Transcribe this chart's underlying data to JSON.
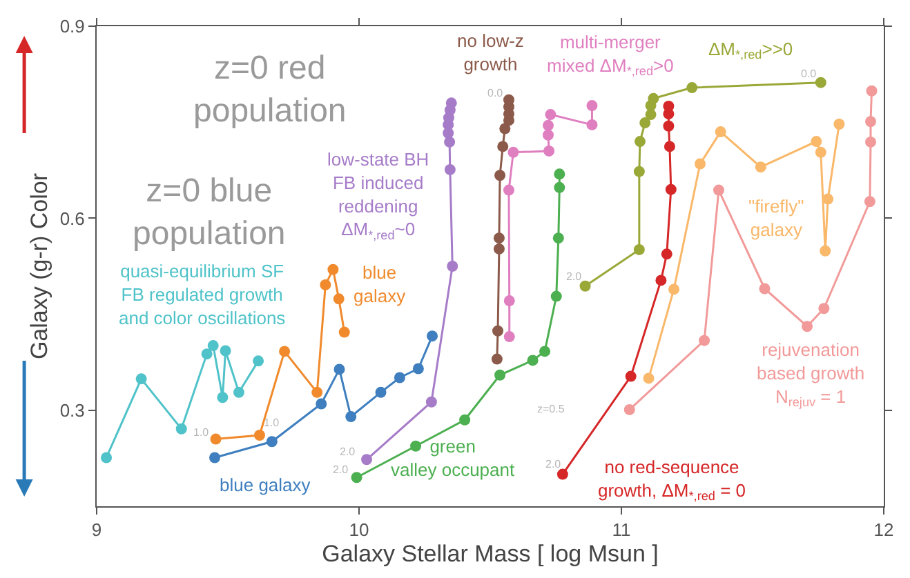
{
  "chart_data": {
    "type": "line",
    "xlabel": "Galaxy Stellar Mass [ log Msun ]",
    "ylabel": "Galaxy (g-r) Color",
    "xlim": [
      9,
      12
    ],
    "xticks": [
      9,
      10,
      11,
      12
    ],
    "ylim": [
      0.15,
      0.9
    ],
    "yticks": [
      0.3,
      0.6,
      0.9
    ],
    "legend": false,
    "marker": "circle",
    "line_style": "solid",
    "series": [
      {
        "name": "quasi-equilibrium SF\nFB regulated growth\nand color oscillations",
        "color": "#4fc3c9",
        "x": [
          9.037,
          9.17,
          9.323,
          9.42,
          9.444,
          9.48,
          9.491,
          9.542,
          9.616
        ],
        "values": [
          0.226,
          0.349,
          0.271,
          0.388,
          0.401,
          0.32,
          0.393,
          0.328,
          0.377
        ]
      },
      {
        "name": "blue\ngalaxy",
        "color": "#f08a2c",
        "x": [
          9.454,
          9.621,
          9.716,
          9.84,
          9.872,
          9.901,
          9.923,
          9.944
        ],
        "values": [
          0.255,
          0.261,
          0.392,
          0.328,
          0.496,
          0.52,
          0.474,
          0.422
        ]
      },
      {
        "name": "blue galaxy",
        "color": "#3f7fbf",
        "x": [
          9.45,
          9.668,
          9.856,
          9.925,
          9.969,
          10.083,
          10.155,
          10.226,
          10.279
        ],
        "values": [
          0.226,
          0.251,
          0.31,
          0.364,
          0.29,
          0.328,
          0.351,
          0.365,
          0.416
        ]
      },
      {
        "name": "low-state BH\nFB induced\nreddening\nΔM$_{*,red}$~0",
        "color": "#a67cc9",
        "x": [
          10.029,
          10.276,
          10.356,
          10.347,
          10.345,
          10.34,
          10.34,
          10.342,
          10.347,
          10.352
        ],
        "values": [
          0.223,
          0.313,
          0.525,
          0.676,
          0.719,
          0.733,
          0.746,
          0.757,
          0.769,
          0.78
        ]
      },
      {
        "name": "no low-z\ngrowth",
        "color": "#8b5a4a",
        "x": [
          10.526,
          10.529,
          10.534,
          10.534,
          10.537,
          10.548,
          10.556,
          10.571,
          10.571,
          10.571,
          10.571
        ],
        "values": [
          0.38,
          0.424,
          0.552,
          0.569,
          0.667,
          0.712,
          0.74,
          0.753,
          0.763,
          0.774,
          0.785
        ]
      },
      {
        "name": "multi-merger\nmixed ΔM$_{*,red}$>0",
        "color": "#e07fc0",
        "x": [
          10.573,
          10.573,
          10.571,
          10.588,
          10.724,
          10.721,
          10.721,
          10.73,
          10.888,
          10.888
        ],
        "values": [
          0.415,
          0.471,
          0.644,
          0.703,
          0.705,
          0.73,
          0.745,
          0.762,
          0.746,
          0.776
        ]
      },
      {
        "name": "green\nvalley occupant",
        "color": "#4caf50",
        "x": [
          9.991,
          10.216,
          10.403,
          10.537,
          10.662,
          10.708,
          10.752,
          10.76,
          10.764,
          10.764
        ],
        "values": [
          0.195,
          0.244,
          0.285,
          0.355,
          0.378,
          0.392,
          0.478,
          0.569,
          0.648,
          0.669
        ]
      },
      {
        "name": "ΔM$_{*,red}$>>0",
        "color": "#9aa838",
        "x": [
          10.862,
          11.068,
          11.068,
          11.071,
          11.09,
          11.112,
          11.112,
          11.122,
          11.269,
          11.76
        ],
        "values": [
          0.494,
          0.551,
          0.673,
          0.72,
          0.749,
          0.762,
          0.776,
          0.787,
          0.804,
          0.812
        ]
      },
      {
        "name": "no red-sequence\ngrowth, ΔM$_{*,red}$ = 0",
        "color": "#d62728",
        "x": [
          10.776,
          11.036,
          11.151,
          11.173,
          11.189,
          11.184,
          11.18,
          11.18,
          11.18
        ],
        "values": [
          0.2,
          0.353,
          0.503,
          0.544,
          0.645,
          0.712,
          0.744,
          0.763,
          0.775
        ]
      },
      {
        "name": "\"firefly\"\ngalaxy",
        "color": "#f9b86a",
        "x": [
          11.104,
          11.2,
          11.3,
          11.378,
          11.531,
          11.743,
          11.76,
          11.777,
          11.787,
          11.83
        ],
        "values": [
          0.35,
          0.489,
          0.685,
          0.735,
          0.68,
          0.72,
          0.703,
          0.549,
          0.63,
          0.747
        ]
      },
      {
        "name": "rejuvenation\nbased growth\nN$_{rejuv}$ = 1",
        "color": "#f29a9a",
        "x": [
          11.031,
          11.316,
          11.371,
          11.546,
          11.708,
          11.772,
          11.947,
          11.95,
          11.95,
          11.954
        ],
        "values": [
          0.301,
          0.409,
          0.644,
          0.49,
          0.431,
          0.459,
          0.626,
          0.719,
          0.751,
          0.799
        ]
      }
    ],
    "annotations": [
      "z=0 red\npopulation",
      "z=0 blue\npopulation",
      "z=0.5",
      "2.0",
      "2.0",
      "2.0",
      "2.0",
      "0.0",
      "0.0",
      "1.0",
      "1.0"
    ]
  }
}
